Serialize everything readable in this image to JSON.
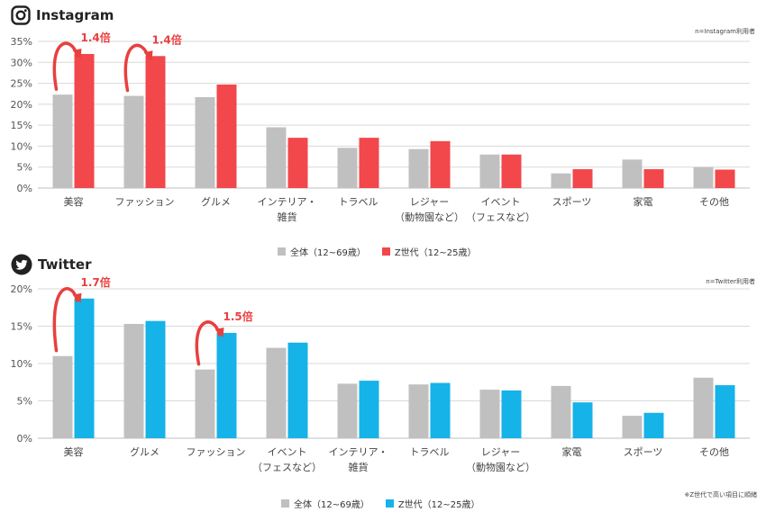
{
  "chart_data": [
    {
      "type": "bar",
      "title": "Instagram",
      "note": "n=Instagram利用者",
      "categories": [
        [
          "美容"
        ],
        [
          "ファッション"
        ],
        [
          "グルメ"
        ],
        [
          "インテリア・",
          "雑貨"
        ],
        [
          "トラベル"
        ],
        [
          "レジャー",
          "（動物園など）"
        ],
        [
          "イベント",
          "（フェスなど）"
        ],
        [
          "スポーツ"
        ],
        [
          "家電"
        ],
        [
          "その他"
        ]
      ],
      "ylim": [
        0,
        35
      ],
      "yticks": [
        "0%",
        "5%",
        "10%",
        "15%",
        "20%",
        "25%",
        "30%",
        "35%"
      ],
      "ytick_values": [
        0,
        5,
        10,
        15,
        20,
        25,
        30,
        35
      ],
      "series": [
        {
          "name": "全体（12~69歳）",
          "color": "#c0c0c0",
          "values": [
            22.3,
            22.0,
            21.7,
            14.5,
            9.6,
            9.3,
            8.0,
            3.5,
            6.8,
            5.0
          ]
        },
        {
          "name": "Z世代（12~25歳）",
          "color": "#f2474b",
          "values": [
            32.0,
            31.5,
            24.7,
            12.0,
            12.0,
            11.2,
            8.0,
            4.5,
            4.5,
            4.4
          ]
        }
      ],
      "annotations": [
        {
          "text": "1.4倍",
          "category_index": 0
        },
        {
          "text": "1.4倍",
          "category_index": 1
        }
      ]
    },
    {
      "type": "bar",
      "title": "Twitter",
      "note": "n=Twitter利用者",
      "footnote": "※Z世代で高い項目に順緒",
      "categories": [
        [
          "美容"
        ],
        [
          "グルメ"
        ],
        [
          "ファッション"
        ],
        [
          "イベント",
          "（フェスなど）"
        ],
        [
          "インテリア・",
          "雑貨"
        ],
        [
          "トラベル"
        ],
        [
          "レジャー",
          "（動物園など）"
        ],
        [
          "家電"
        ],
        [
          "スポーツ"
        ],
        [
          "その他"
        ]
      ],
      "ylim": [
        0,
        20
      ],
      "yticks": [
        "0%",
        "5%",
        "10%",
        "15%",
        "20%"
      ],
      "ytick_values": [
        0,
        5,
        10,
        15,
        20
      ],
      "series": [
        {
          "name": "全体（12~69歳）",
          "color": "#c0c0c0",
          "values": [
            11.0,
            15.3,
            9.2,
            12.1,
            7.3,
            7.2,
            6.5,
            7.0,
            3.0,
            8.1
          ]
        },
        {
          "name": "Z世代（12~25歳）",
          "color": "#15b3e8",
          "values": [
            18.7,
            15.7,
            14.1,
            12.8,
            7.7,
            7.4,
            6.4,
            4.8,
            3.4,
            7.1
          ]
        }
      ],
      "annotations": [
        {
          "text": "1.7倍",
          "category_index": 0
        },
        {
          "text": "1.5倍",
          "category_index": 2
        }
      ]
    }
  ],
  "colors": {
    "accent_red": "#e8403f",
    "grid": "#d9d9d9",
    "axis_text": "#555555"
  },
  "icons": {
    "instagram": "instagram-icon",
    "twitter": "twitter-icon"
  }
}
